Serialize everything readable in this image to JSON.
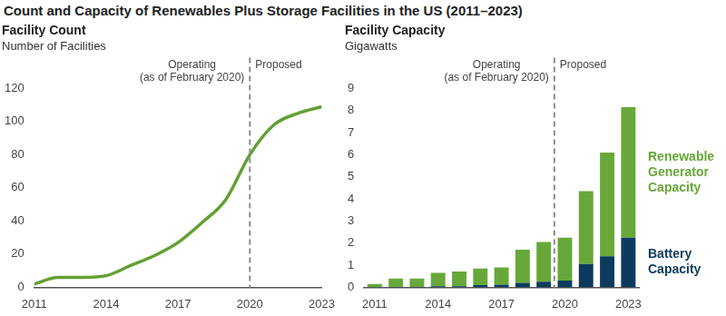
{
  "title": "Count and Capacity of Renewables Plus Storage Facilities in the US (2011–2023)",
  "chart_data": [
    {
      "type": "line",
      "title": "Facility Count",
      "subtitle": "Number of Facilities",
      "x": [
        2011,
        2012,
        2013,
        2014,
        2015,
        2016,
        2017,
        2018,
        2019,
        2020,
        2021,
        2022,
        2023
      ],
      "values": [
        2,
        6,
        6,
        7,
        13,
        19,
        27,
        39,
        53,
        80,
        98,
        105,
        109
      ],
      "color": "#62a033",
      "xlim": [
        2011,
        2023
      ],
      "xticks": [
        2011,
        2014,
        2017,
        2020,
        2023
      ],
      "ylim": [
        0,
        120
      ],
      "yticks": [
        0,
        20,
        40,
        60,
        80,
        100,
        120
      ],
      "grid": false,
      "divider": {
        "x": 2020,
        "line_style": "dashed",
        "left_label": [
          "Operating",
          "(as of February 2020)"
        ],
        "right_label": "Proposed"
      }
    },
    {
      "type": "bar",
      "stacked": true,
      "title": "Facility Capacity",
      "subtitle": "Gigawatts",
      "categories": [
        "2011",
        null,
        null,
        "2014",
        null,
        null,
        "2017",
        null,
        null,
        "2020",
        null,
        null,
        "2023"
      ],
      "series": [
        {
          "name": "Battery Capacity",
          "color": "#0d3b5e",
          "values": [
            0.01,
            0.02,
            0.02,
            0.05,
            0.05,
            0.1,
            0.12,
            0.2,
            0.25,
            0.3,
            1.05,
            1.4,
            2.25
          ]
        },
        {
          "name": "Renewable Generator Capacity",
          "color": "#68a83a",
          "values": [
            0.14,
            0.38,
            0.38,
            0.6,
            0.67,
            0.75,
            0.78,
            1.5,
            1.8,
            1.95,
            3.3,
            4.7,
            5.9
          ]
        }
      ],
      "ylim": [
        0,
        9
      ],
      "yticks": [
        0,
        1,
        2,
        3,
        4,
        5,
        6,
        7,
        8,
        9
      ],
      "grid": false,
      "divider": {
        "x": "2020",
        "line_style": "dashed",
        "left_label": [
          "Operating",
          "(as of February 2020)"
        ],
        "right_label": "Proposed"
      }
    }
  ]
}
